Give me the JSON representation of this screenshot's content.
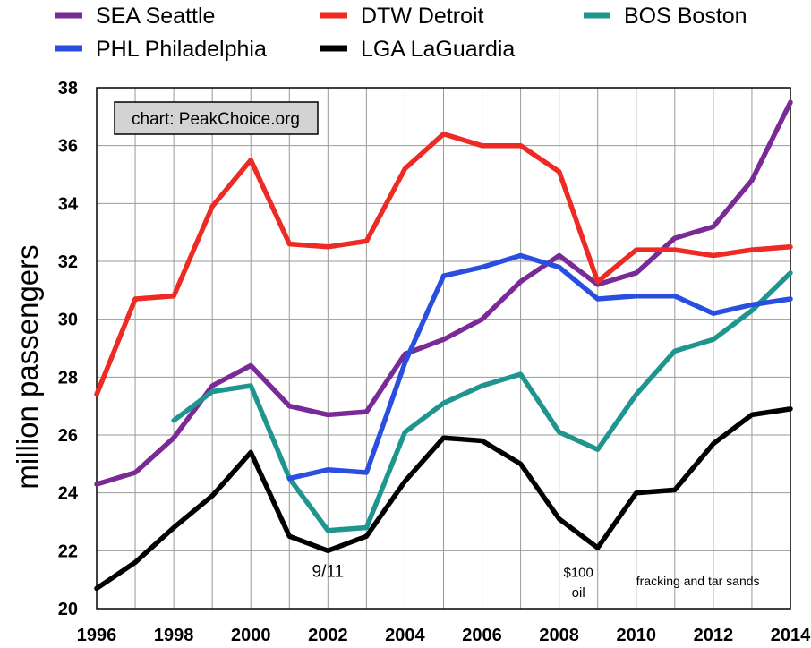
{
  "chart_data": {
    "type": "line",
    "title": "",
    "xlabel": "",
    "ylabel": "million passengers",
    "xlim": [
      1996,
      2014
    ],
    "ylim": [
      20,
      38
    ],
    "x_ticks": [
      1996,
      1998,
      2000,
      2002,
      2004,
      2006,
      2008,
      2010,
      2012,
      2014
    ],
    "y_ticks": [
      20,
      22,
      24,
      26,
      28,
      30,
      32,
      34,
      36,
      38
    ],
    "x_tick_labels": [
      "1996",
      "1998",
      "2000",
      "2002",
      "2004",
      "2006",
      "2008",
      "2010",
      "2012",
      "2014"
    ],
    "y_tick_labels": [
      "20",
      "22",
      "24",
      "26",
      "28",
      "30",
      "32",
      "34",
      "36",
      "38"
    ],
    "grid": true,
    "legend_position": "top",
    "series": [
      {
        "name": "SEA Seattle",
        "color": "#7a2a96",
        "points": [
          [
            1996,
            24.3
          ],
          [
            1997,
            24.7
          ],
          [
            1998,
            25.9
          ],
          [
            1999,
            27.7
          ],
          [
            2000,
            28.4
          ],
          [
            2001,
            27.0
          ],
          [
            2002,
            26.7
          ],
          [
            2003,
            26.8
          ],
          [
            2004,
            28.8
          ],
          [
            2005,
            29.3
          ],
          [
            2006,
            30.0
          ],
          [
            2007,
            31.3
          ],
          [
            2008,
            32.2
          ],
          [
            2009,
            31.2
          ],
          [
            2010,
            31.6
          ],
          [
            2011,
            32.8
          ],
          [
            2012,
            33.2
          ],
          [
            2013,
            34.8
          ],
          [
            2014,
            37.5
          ]
        ]
      },
      {
        "name": "DTW Detroit",
        "color": "#ee2a24",
        "points": [
          [
            1996,
            27.4
          ],
          [
            1997,
            30.7
          ],
          [
            1998,
            30.8
          ],
          [
            1999,
            33.9
          ],
          [
            2000,
            35.5
          ],
          [
            2001,
            32.6
          ],
          [
            2002,
            32.5
          ],
          [
            2003,
            32.7
          ],
          [
            2004,
            35.2
          ],
          [
            2005,
            36.4
          ],
          [
            2006,
            36.0
          ],
          [
            2007,
            36.0
          ],
          [
            2008,
            35.1
          ],
          [
            2009,
            31.3
          ],
          [
            2010,
            32.4
          ],
          [
            2011,
            32.4
          ],
          [
            2012,
            32.2
          ],
          [
            2013,
            32.4
          ],
          [
            2014,
            32.5
          ]
        ]
      },
      {
        "name": "BOS Boston",
        "color": "#1f9590",
        "points": [
          [
            1998,
            26.5
          ],
          [
            1999,
            27.5
          ],
          [
            2000,
            27.7
          ],
          [
            2001,
            24.5
          ],
          [
            2002,
            22.7
          ],
          [
            2003,
            22.8
          ],
          [
            2004,
            26.1
          ],
          [
            2005,
            27.1
          ],
          [
            2006,
            27.7
          ],
          [
            2007,
            28.1
          ],
          [
            2008,
            26.1
          ],
          [
            2009,
            25.5
          ],
          [
            2010,
            27.4
          ],
          [
            2011,
            28.9
          ],
          [
            2012,
            29.3
          ],
          [
            2013,
            30.3
          ],
          [
            2014,
            31.6
          ]
        ]
      },
      {
        "name": "PHL Philadelphia",
        "color": "#2a4fe0",
        "points": [
          [
            2001,
            24.5
          ],
          [
            2002,
            24.8
          ],
          [
            2003,
            24.7
          ],
          [
            2004,
            28.5
          ],
          [
            2005,
            31.5
          ],
          [
            2006,
            31.8
          ],
          [
            2007,
            32.2
          ],
          [
            2008,
            31.8
          ],
          [
            2009,
            30.7
          ],
          [
            2010,
            30.8
          ],
          [
            2011,
            30.8
          ],
          [
            2012,
            30.2
          ],
          [
            2013,
            30.5
          ],
          [
            2014,
            30.7
          ]
        ]
      },
      {
        "name": "LGA LaGuardia",
        "color": "#000000",
        "points": [
          [
            1996,
            20.7
          ],
          [
            1997,
            21.6
          ],
          [
            1998,
            22.8
          ],
          [
            1999,
            23.9
          ],
          [
            2000,
            25.4
          ],
          [
            2001,
            22.5
          ],
          [
            2002,
            22.0
          ],
          [
            2003,
            22.5
          ],
          [
            2004,
            24.4
          ],
          [
            2005,
            25.9
          ],
          [
            2006,
            25.8
          ],
          [
            2007,
            25.0
          ],
          [
            2008,
            23.1
          ],
          [
            2009,
            22.1
          ],
          [
            2010,
            24.0
          ],
          [
            2011,
            24.1
          ],
          [
            2012,
            25.7
          ],
          [
            2013,
            26.7
          ],
          [
            2014,
            26.9
          ]
        ]
      }
    ],
    "annotations": [
      {
        "id": "annotation-911",
        "text": "9/11",
        "x": 2002,
        "y": 21.1
      },
      {
        "id": "annotation-oil-line1",
        "text": "$100",
        "x": 2008.5,
        "y": 21.1
      },
      {
        "id": "annotation-oil-line2",
        "text": "oil",
        "x": 2008.5,
        "y": 20.4
      },
      {
        "id": "annotation-fracking",
        "text": "fracking and tar sands",
        "x": 2011.6,
        "y": 20.8
      }
    ],
    "credit": "chart: PeakChoice.org"
  }
}
